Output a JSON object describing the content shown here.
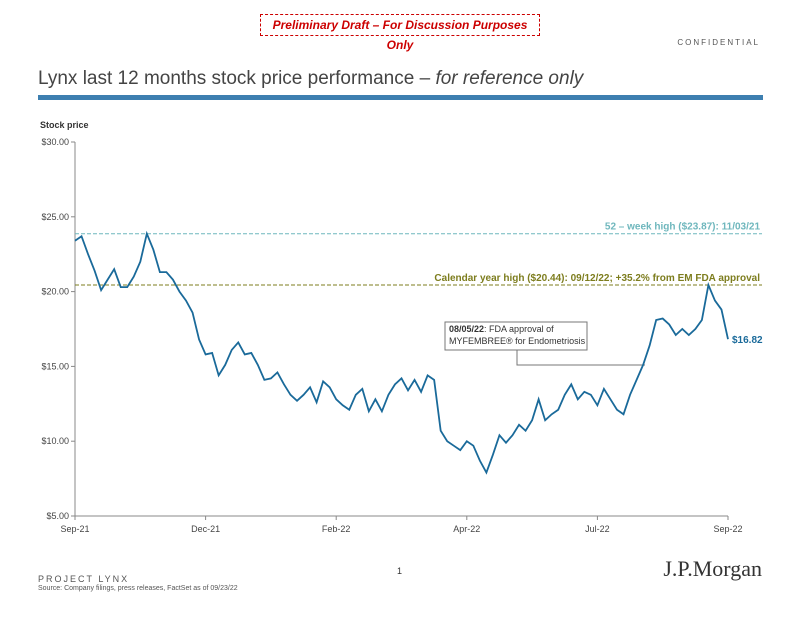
{
  "header": {
    "draft_notice": "Preliminary Draft – For Discussion Purposes Only",
    "confidential": "CONFIDENTIAL",
    "title": "Lynx last 12 months stock price performance – ",
    "title_note": "for reference only"
  },
  "chart_data": {
    "type": "line",
    "y_label": "Stock price",
    "categories": [
      "Sep-21",
      null,
      null,
      null,
      null,
      null,
      null,
      null,
      null,
      null,
      null,
      null,
      null,
      null,
      null,
      null,
      null,
      null,
      null,
      null,
      "Dec-21",
      null,
      null,
      null,
      null,
      null,
      null,
      null,
      null,
      null,
      null,
      null,
      null,
      null,
      null,
      null,
      null,
      null,
      null,
      null,
      "Feb-22",
      null,
      null,
      null,
      null,
      null,
      null,
      null,
      null,
      null,
      null,
      null,
      null,
      null,
      null,
      null,
      null,
      null,
      null,
      null,
      "Apr-22",
      null,
      null,
      null,
      null,
      null,
      null,
      null,
      null,
      null,
      null,
      null,
      null,
      null,
      null,
      null,
      null,
      null,
      null,
      null,
      "Jul-22",
      null,
      null,
      null,
      null,
      null,
      null,
      null,
      null,
      null,
      null,
      null,
      null,
      null,
      null,
      null,
      null,
      null,
      null,
      null,
      "Sep-22"
    ],
    "series": [
      {
        "name": "Lynx",
        "color": "#1a6a9a",
        "values": [
          23.4,
          23.7,
          22.5,
          21.4,
          20.1,
          20.8,
          21.5,
          20.3,
          20.3,
          21.0,
          22.0,
          23.87,
          22.8,
          21.3,
          21.3,
          20.8,
          20.0,
          19.4,
          18.6,
          16.8,
          15.8,
          15.9,
          14.4,
          15.1,
          16.1,
          16.6,
          15.8,
          15.9,
          15.1,
          14.1,
          14.2,
          14.6,
          13.8,
          13.1,
          12.7,
          13.1,
          13.6,
          12.6,
          14.0,
          13.6,
          12.8,
          12.4,
          12.1,
          13.1,
          13.5,
          12.0,
          12.8,
          12.0,
          13.1,
          13.8,
          14.2,
          13.4,
          14.1,
          13.3,
          14.4,
          14.1,
          10.7,
          10.0,
          9.7,
          9.4,
          10.0,
          9.7,
          8.7,
          7.9,
          9.1,
          10.4,
          9.9,
          10.4,
          11.1,
          10.7,
          11.4,
          12.8,
          11.4,
          11.8,
          12.1,
          13.1,
          13.8,
          12.8,
          13.3,
          13.1,
          12.4,
          13.5,
          12.8,
          12.1,
          11.8,
          13.1,
          14.1,
          15.1,
          16.4,
          18.1,
          18.2,
          17.8,
          17.1,
          17.5,
          17.1,
          17.5,
          18.1,
          20.44,
          19.4,
          18.8,
          16.82
        ],
        "value_labels": [
          null,
          null,
          null,
          null,
          null,
          null,
          null,
          null,
          null,
          null,
          null,
          null,
          null,
          null,
          null,
          null,
          null,
          null,
          null,
          null,
          null,
          null,
          null,
          null,
          null,
          null,
          null,
          null,
          null,
          null,
          null,
          null,
          null,
          null,
          null,
          null,
          null,
          null,
          null,
          null,
          null,
          null,
          null,
          null,
          null,
          null,
          null,
          null,
          null,
          null,
          null,
          null,
          null,
          null,
          null,
          null,
          null,
          null,
          null,
          null,
          null,
          null,
          null,
          null,
          null,
          null,
          null,
          null,
          null,
          null,
          null,
          null,
          null,
          null,
          null,
          null,
          null,
          null,
          null,
          null,
          null,
          null,
          null,
          null,
          null,
          null,
          null,
          null,
          null,
          null,
          null,
          null,
          null,
          null,
          null,
          null,
          null,
          null,
          null,
          null,
          "$16.82"
        ]
      }
    ],
    "ylim": [
      5,
      30
    ],
    "yticks": [
      {
        "value": 5,
        "label": "$5.00"
      },
      {
        "value": 10,
        "label": "$10.00"
      },
      {
        "value": 15,
        "label": "$15.00"
      },
      {
        "value": 20,
        "label": "$20.00"
      },
      {
        "value": 25,
        "label": "$25.00"
      },
      {
        "value": 30,
        "label": "$30.00"
      }
    ],
    "reference_lines": [
      {
        "value": 23.87,
        "label": "52 – week high ($23.87): 11/03/21",
        "color": "#6fb7bd"
      },
      {
        "value": 20.44,
        "label": "Calendar year high ($20.44): 09/12/22; +35.2% from EM FDA approval",
        "color": "#7d7d1e"
      }
    ],
    "annotation": {
      "date": "08/05/22",
      "line1": ": FDA approval of",
      "line2": "MYFEMBREE® for Endometriosis"
    }
  },
  "footer": {
    "page": "1",
    "project": "PROJECT LYNX",
    "source": "Source: Company filings, press releases, FactSet as of 09/23/22",
    "logo": "J.P.Morgan"
  }
}
